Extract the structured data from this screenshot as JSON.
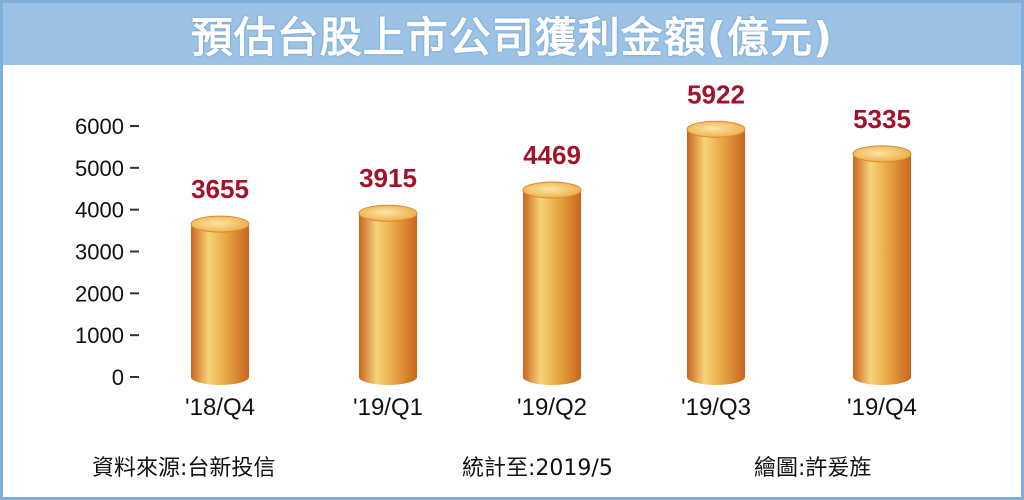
{
  "header": {
    "title": "預估台股上市公司獲利金額(億元)"
  },
  "chart_data": {
    "type": "bar",
    "title": "預估台股上市公司獲利金額(億元)",
    "categories": [
      "'18/Q4",
      "'19/Q1",
      "'19/Q2",
      "'19/Q3",
      "'19/Q4"
    ],
    "values": [
      3655,
      3915,
      4469,
      5922,
      5335
    ],
    "ylim": [
      0,
      6000
    ],
    "yticks": [
      0,
      1000,
      2000,
      3000,
      4000,
      5000,
      6000
    ],
    "xlabel": "",
    "ylabel": "",
    "grid": false,
    "colors": {
      "bar_light": "#f7d27a",
      "bar_mid": "#e9a23a",
      "bar_dark": "#c8651c",
      "value_label": "#a3122a"
    }
  },
  "footer": {
    "source": "資料來源:台新投信",
    "stats_date": "統計至:2019/5",
    "artist": "繪圖:許爰旌"
  },
  "colors": {
    "title_bar": "#9cc3e6",
    "frame": "#7fb0dc"
  }
}
